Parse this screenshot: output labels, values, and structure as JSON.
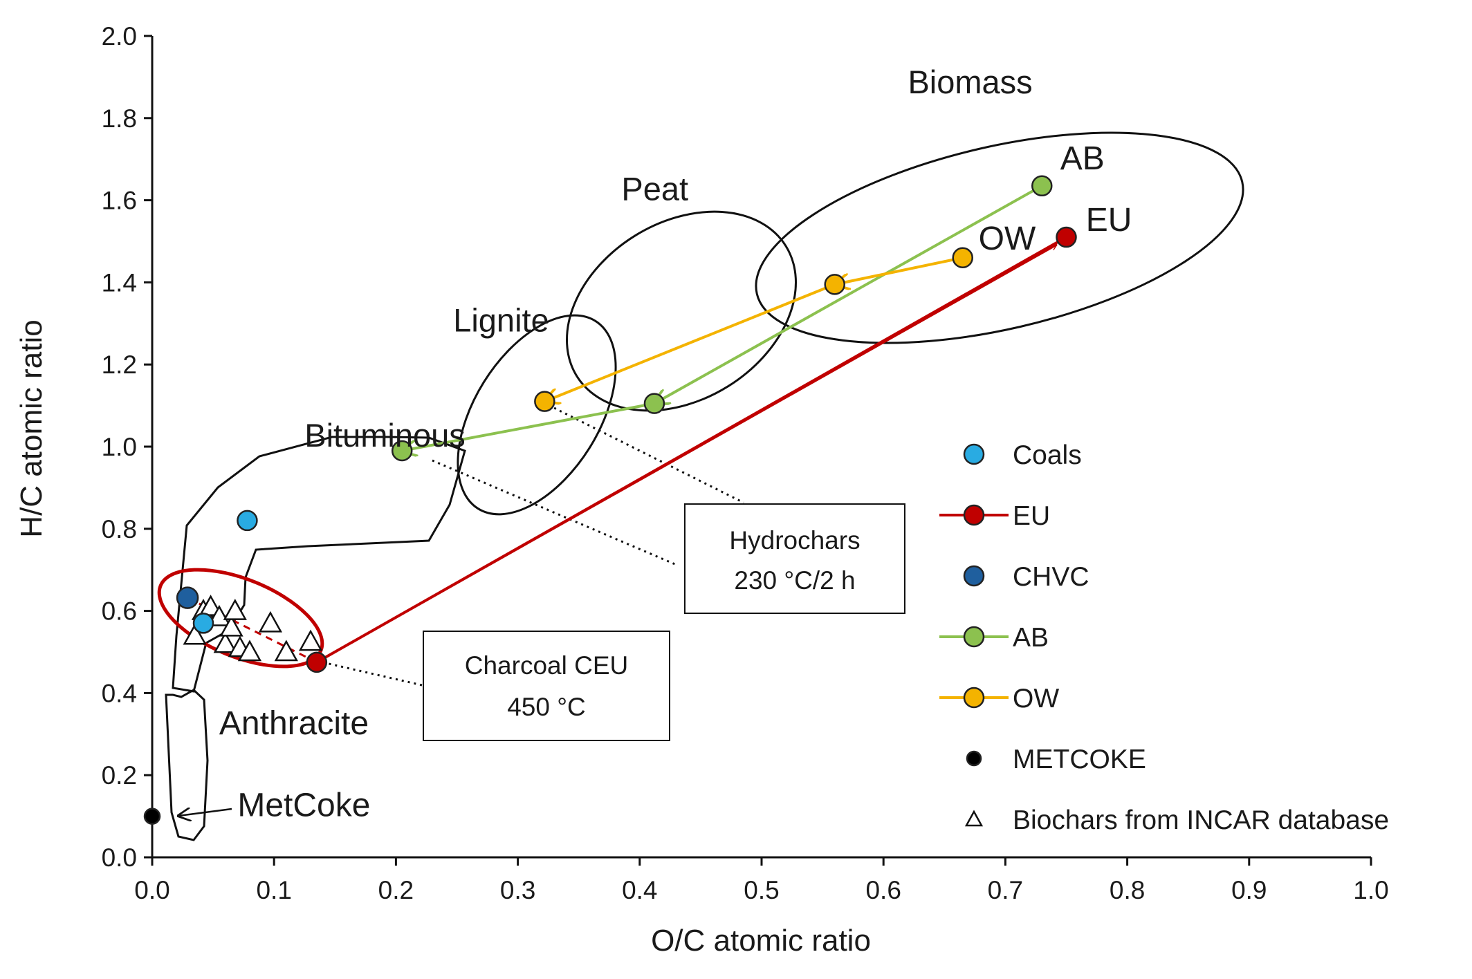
{
  "chart_data": {
    "type": "scatter",
    "title": "",
    "xlabel": "O/C atomic ratio",
    "ylabel": "H/C atomic ratio",
    "xlim": [
      0.0,
      1.0
    ],
    "ylim": [
      0.0,
      2.0
    ],
    "x_ticks": [
      "0.0",
      "0.1",
      "0.2",
      "0.3",
      "0.4",
      "0.5",
      "0.6",
      "0.7",
      "0.8",
      "0.9",
      "1.0"
    ],
    "y_ticks": [
      "0.0",
      "0.2",
      "0.4",
      "0.6",
      "0.8",
      "1.0",
      "1.2",
      "1.4",
      "1.6",
      "1.8",
      "2.0"
    ],
    "grid": false,
    "legend_position": "right",
    "colors": {
      "coals": "#29abe2",
      "eu": "#c00000",
      "chvc": "#1f5f9e",
      "ab": "#8cc14f",
      "ow": "#f4b300",
      "metcoke": "#000000",
      "biochar": "#ffffff",
      "region_outline": "#111111",
      "highlight_ellipse": "#c00000"
    },
    "series": [
      {
        "name": "Coals",
        "key": "coals",
        "marker": "circle",
        "line": false,
        "points": [
          {
            "x": 0.078,
            "y": 0.82
          },
          {
            "x": 0.042,
            "y": 0.57
          }
        ]
      },
      {
        "name": "EU",
        "key": "eu",
        "marker": "circle",
        "line": true,
        "points": [
          {
            "x": 0.75,
            "y": 1.51
          },
          {
            "x": 0.135,
            "y": 0.475
          }
        ]
      },
      {
        "name": "CHVC",
        "key": "chvc",
        "marker": "circle",
        "line": false,
        "points": [
          {
            "x": 0.029,
            "y": 0.632
          }
        ]
      },
      {
        "name": "AB",
        "key": "ab",
        "marker": "circle",
        "line": true,
        "points": [
          {
            "x": 0.73,
            "y": 1.635
          },
          {
            "x": 0.412,
            "y": 1.105
          },
          {
            "x": 0.205,
            "y": 0.99
          }
        ]
      },
      {
        "name": "OW",
        "key": "ow",
        "marker": "circle",
        "line": true,
        "points": [
          {
            "x": 0.665,
            "y": 1.46
          },
          {
            "x": 0.56,
            "y": 1.395
          },
          {
            "x": 0.322,
            "y": 1.11
          }
        ]
      },
      {
        "name": "METCOKE",
        "key": "metcoke",
        "marker": "circle",
        "line": false,
        "points": [
          {
            "x": 0.0,
            "y": 0.1
          }
        ]
      },
      {
        "name": "Biochars from INCAR database",
        "key": "biochar",
        "marker": "triangle",
        "line": false,
        "points": [
          {
            "x": 0.035,
            "y": 0.54
          },
          {
            "x": 0.042,
            "y": 0.6
          },
          {
            "x": 0.048,
            "y": 0.61
          },
          {
            "x": 0.055,
            "y": 0.585
          },
          {
            "x": 0.06,
            "y": 0.52
          },
          {
            "x": 0.065,
            "y": 0.56
          },
          {
            "x": 0.068,
            "y": 0.6
          },
          {
            "x": 0.072,
            "y": 0.51
          },
          {
            "x": 0.08,
            "y": 0.5
          },
          {
            "x": 0.097,
            "y": 0.57
          },
          {
            "x": 0.11,
            "y": 0.5
          },
          {
            "x": 0.13,
            "y": 0.525
          }
        ]
      }
    ],
    "region_labels": [
      {
        "text": "Biomass",
        "x": 0.62,
        "y": 1.86
      },
      {
        "text": "Peat",
        "x": 0.385,
        "y": 1.6
      },
      {
        "text": "Lignite",
        "x": 0.247,
        "y": 1.28
      },
      {
        "text": "Bituminous",
        "x": 0.125,
        "y": 1.0
      },
      {
        "text": "Anthracite",
        "x": 0.055,
        "y": 0.3
      },
      {
        "text": "MetCoke",
        "x": 0.07,
        "y": 0.1
      }
    ],
    "point_labels": [
      {
        "text": "AB",
        "x": 0.745,
        "y": 1.675
      },
      {
        "text": "EU",
        "x": 0.766,
        "y": 1.525
      },
      {
        "text": "OW",
        "x": 0.678,
        "y": 1.48
      }
    ],
    "annotations": [
      {
        "lines": [
          "Hydrochars",
          "230 °C/2 h"
        ]
      },
      {
        "lines": [
          "Charcoal CEU",
          "450 °C"
        ]
      }
    ]
  }
}
